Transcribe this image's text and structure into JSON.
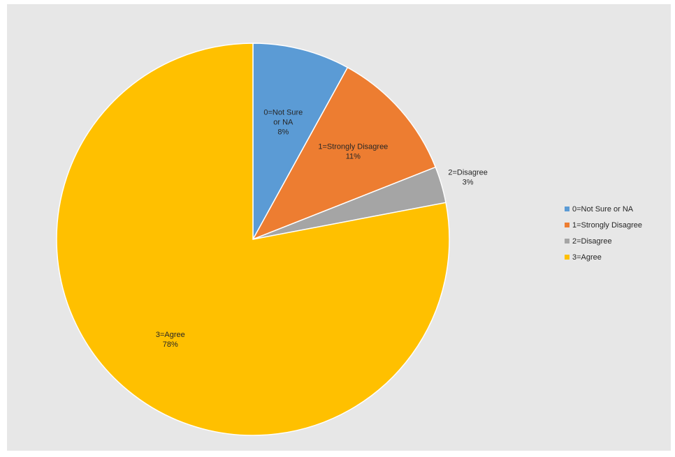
{
  "chart_data": {
    "type": "pie",
    "title": "",
    "categories": [
      "0=Not Sure or NA",
      "1=Strongly Disagree",
      "2=Disagree",
      "3=Agree"
    ],
    "values": [
      8,
      11,
      3,
      78
    ],
    "units": "%",
    "colors": [
      "#5b9bd5",
      "#ed7d31",
      "#a5a5a5",
      "#ffc000"
    ],
    "data_labels": [
      [
        "0=Not Sure",
        "or NA",
        "8%"
      ],
      [
        "1=Strongly Disagree",
        "11%"
      ],
      [
        "2=Disagree",
        "3%"
      ],
      [
        "3=Agree",
        "78%"
      ]
    ],
    "legend_position": "right",
    "start_angle": "top",
    "direction": "clockwise"
  }
}
